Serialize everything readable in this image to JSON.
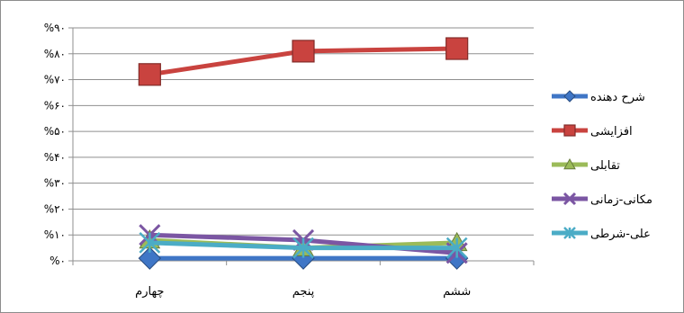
{
  "chart_data": {
    "type": "line",
    "categories": [
      "چهارم",
      "پنجم",
      "ششم"
    ],
    "y_tick_labels": [
      "%۰",
      "%۱۰",
      "%۲۰",
      "%۳۰",
      "%۴۰",
      "%۵۰",
      "%۶۰",
      "%۷۰",
      "%۸۰",
      "%۹۰"
    ],
    "ylim": [
      0,
      90
    ],
    "grid": true,
    "legend_position": "right",
    "series": [
      {
        "name": "شرح دهنده",
        "values": [
          1,
          1,
          1
        ],
        "color": "#3f76c6",
        "marker": "diamond"
      },
      {
        "name": "افزایشی",
        "values": [
          72,
          81,
          82
        ],
        "color": "#c9433f",
        "marker": "square"
      },
      {
        "name": "تقابلی",
        "values": [
          8,
          5,
          7
        ],
        "color": "#9bbb59",
        "marker": "triangle"
      },
      {
        "name": "مکانی-زمانی",
        "values": [
          10,
          8,
          3
        ],
        "color": "#7b56a3",
        "marker": "x"
      },
      {
        "name": "علی-شرطی",
        "values": [
          7,
          5,
          5
        ],
        "color": "#4bacc6",
        "marker": "star"
      }
    ]
  }
}
